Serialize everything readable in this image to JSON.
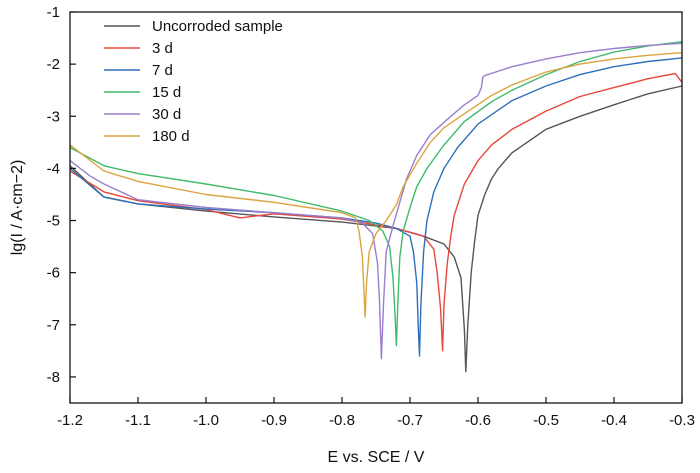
{
  "chart_data": {
    "type": "line",
    "xlabel": "E vs. SCE / V",
    "ylabel": "lg(I / A·cm−2)",
    "xlim": [
      -1.2,
      -0.3
    ],
    "ylim": [
      -8.5,
      -1
    ],
    "x_ticks": [
      -1.2,
      -1.1,
      -1.0,
      -0.9,
      -0.8,
      -0.7,
      -0.6,
      -0.5,
      -0.4,
      -0.3
    ],
    "x_tick_labels": [
      "-1.2",
      "-1.1",
      "-1.0",
      "-0.9",
      "-0.8",
      "-0.7",
      "-0.6",
      "-0.5",
      "-0.4",
      "-0.3"
    ],
    "y_ticks": [
      -8,
      -7,
      -6,
      -5,
      -4,
      -3,
      -2,
      -1
    ],
    "y_tick_labels": [
      "-8",
      "-7",
      "-6",
      "-5",
      "-4",
      "-3",
      "-2",
      "-1"
    ],
    "grid": false,
    "legend_position": "top-left",
    "series": [
      {
        "name": "Uncorroded sample",
        "color": "#555555",
        "points": [
          [
            -1.2,
            -3.95
          ],
          [
            -1.15,
            -4.55
          ],
          [
            -1.1,
            -4.68
          ],
          [
            -1.0,
            -4.82
          ],
          [
            -0.9,
            -4.93
          ],
          [
            -0.8,
            -5.03
          ],
          [
            -0.72,
            -5.15
          ],
          [
            -0.68,
            -5.3
          ],
          [
            -0.65,
            -5.45
          ],
          [
            -0.635,
            -5.7
          ],
          [
            -0.625,
            -6.1
          ],
          [
            -0.62,
            -7.1
          ],
          [
            -0.618,
            -7.9
          ],
          [
            -0.615,
            -7.0
          ],
          [
            -0.61,
            -6.0
          ],
          [
            -0.605,
            -5.4
          ],
          [
            -0.6,
            -4.9
          ],
          [
            -0.59,
            -4.5
          ],
          [
            -0.58,
            -4.2
          ],
          [
            -0.57,
            -4.0
          ],
          [
            -0.55,
            -3.7
          ],
          [
            -0.5,
            -3.25
          ],
          [
            -0.45,
            -3.0
          ],
          [
            -0.4,
            -2.78
          ],
          [
            -0.35,
            -2.57
          ],
          [
            -0.3,
            -2.42
          ]
        ]
      },
      {
        "name": "3 d",
        "color": "#e8473c",
        "points": [
          [
            -1.2,
            -4.05
          ],
          [
            -1.15,
            -4.45
          ],
          [
            -1.1,
            -4.62
          ],
          [
            -1.0,
            -4.79
          ],
          [
            -0.95,
            -4.95
          ],
          [
            -0.9,
            -4.87
          ],
          [
            -0.8,
            -4.97
          ],
          [
            -0.72,
            -5.15
          ],
          [
            -0.68,
            -5.3
          ],
          [
            -0.665,
            -5.55
          ],
          [
            -0.66,
            -6.0
          ],
          [
            -0.655,
            -6.7
          ],
          [
            -0.652,
            -7.5
          ],
          [
            -0.65,
            -6.6
          ],
          [
            -0.645,
            -5.8
          ],
          [
            -0.64,
            -5.3
          ],
          [
            -0.635,
            -4.9
          ],
          [
            -0.62,
            -4.3
          ],
          [
            -0.6,
            -3.85
          ],
          [
            -0.58,
            -3.55
          ],
          [
            -0.55,
            -3.25
          ],
          [
            -0.5,
            -2.9
          ],
          [
            -0.45,
            -2.62
          ],
          [
            -0.4,
            -2.45
          ],
          [
            -0.35,
            -2.28
          ],
          [
            -0.31,
            -2.18
          ],
          [
            -0.3,
            -2.35
          ]
        ]
      },
      {
        "name": "7 d",
        "color": "#2e6fba",
        "points": [
          [
            -1.2,
            -4.0
          ],
          [
            -1.15,
            -4.55
          ],
          [
            -1.1,
            -4.68
          ],
          [
            -1.0,
            -4.78
          ],
          [
            -0.9,
            -4.85
          ],
          [
            -0.8,
            -4.95
          ],
          [
            -0.75,
            -5.05
          ],
          [
            -0.72,
            -5.15
          ],
          [
            -0.7,
            -5.3
          ],
          [
            -0.695,
            -5.6
          ],
          [
            -0.69,
            -6.2
          ],
          [
            -0.688,
            -7.0
          ],
          [
            -0.686,
            -7.6
          ],
          [
            -0.684,
            -6.6
          ],
          [
            -0.68,
            -5.6
          ],
          [
            -0.675,
            -5.0
          ],
          [
            -0.665,
            -4.45
          ],
          [
            -0.65,
            -4.0
          ],
          [
            -0.63,
            -3.6
          ],
          [
            -0.6,
            -3.15
          ],
          [
            -0.55,
            -2.7
          ],
          [
            -0.5,
            -2.42
          ],
          [
            -0.45,
            -2.2
          ],
          [
            -0.4,
            -2.05
          ],
          [
            -0.35,
            -1.95
          ],
          [
            -0.3,
            -1.88
          ]
        ]
      },
      {
        "name": "15 d",
        "color": "#3fba6a",
        "points": [
          [
            -1.2,
            -3.6
          ],
          [
            -1.15,
            -3.95
          ],
          [
            -1.1,
            -4.1
          ],
          [
            -1.0,
            -4.3
          ],
          [
            -0.9,
            -4.52
          ],
          [
            -0.8,
            -4.82
          ],
          [
            -0.76,
            -5.0
          ],
          [
            -0.74,
            -5.2
          ],
          [
            -0.73,
            -5.5
          ],
          [
            -0.725,
            -6.1
          ],
          [
            -0.722,
            -6.8
          ],
          [
            -0.72,
            -7.4
          ],
          [
            -0.718,
            -6.6
          ],
          [
            -0.715,
            -5.7
          ],
          [
            -0.71,
            -5.2
          ],
          [
            -0.7,
            -4.75
          ],
          [
            -0.69,
            -4.35
          ],
          [
            -0.675,
            -4.0
          ],
          [
            -0.65,
            -3.55
          ],
          [
            -0.62,
            -3.1
          ],
          [
            -0.58,
            -2.72
          ],
          [
            -0.55,
            -2.5
          ],
          [
            -0.5,
            -2.2
          ],
          [
            -0.45,
            -1.95
          ],
          [
            -0.4,
            -1.77
          ],
          [
            -0.35,
            -1.65
          ],
          [
            -0.3,
            -1.57
          ]
        ]
      },
      {
        "name": "30 d",
        "color": "#9a7fcc",
        "points": [
          [
            -1.2,
            -3.85
          ],
          [
            -1.17,
            -4.15
          ],
          [
            -1.15,
            -4.3
          ],
          [
            -1.1,
            -4.6
          ],
          [
            -1.0,
            -4.75
          ],
          [
            -0.9,
            -4.85
          ],
          [
            -0.8,
            -4.95
          ],
          [
            -0.77,
            -5.05
          ],
          [
            -0.755,
            -5.25
          ],
          [
            -0.748,
            -5.8
          ],
          [
            -0.745,
            -6.5
          ],
          [
            -0.742,
            -7.65
          ],
          [
            -0.739,
            -6.6
          ],
          [
            -0.735,
            -5.6
          ],
          [
            -0.725,
            -5.1
          ],
          [
            -0.715,
            -4.65
          ],
          [
            -0.705,
            -4.2
          ],
          [
            -0.69,
            -3.75
          ],
          [
            -0.67,
            -3.35
          ],
          [
            -0.64,
            -3.0
          ],
          [
            -0.62,
            -2.78
          ],
          [
            -0.6,
            -2.6
          ],
          [
            -0.595,
            -2.45
          ],
          [
            -0.593,
            -2.25
          ],
          [
            -0.59,
            -2.22
          ],
          [
            -0.55,
            -2.05
          ],
          [
            -0.5,
            -1.9
          ],
          [
            -0.45,
            -1.78
          ],
          [
            -0.4,
            -1.7
          ],
          [
            -0.35,
            -1.64
          ],
          [
            -0.3,
            -1.6
          ]
        ]
      },
      {
        "name": "180 d",
        "color": "#dba43f",
        "points": [
          [
            -1.2,
            -3.55
          ],
          [
            -1.15,
            -4.05
          ],
          [
            -1.1,
            -4.25
          ],
          [
            -1.0,
            -4.5
          ],
          [
            -0.9,
            -4.65
          ],
          [
            -0.85,
            -4.75
          ],
          [
            -0.8,
            -4.85
          ],
          [
            -0.78,
            -4.95
          ],
          [
            -0.775,
            -5.2
          ],
          [
            -0.77,
            -5.7
          ],
          [
            -0.768,
            -6.3
          ],
          [
            -0.766,
            -6.85
          ],
          [
            -0.764,
            -6.2
          ],
          [
            -0.76,
            -5.6
          ],
          [
            -0.75,
            -5.25
          ],
          [
            -0.735,
            -5.0
          ],
          [
            -0.72,
            -4.7
          ],
          [
            -0.71,
            -4.35
          ],
          [
            -0.69,
            -3.9
          ],
          [
            -0.67,
            -3.5
          ],
          [
            -0.65,
            -3.22
          ],
          [
            -0.62,
            -2.95
          ],
          [
            -0.58,
            -2.6
          ],
          [
            -0.55,
            -2.4
          ],
          [
            -0.5,
            -2.15
          ],
          [
            -0.45,
            -2.0
          ],
          [
            -0.4,
            -1.9
          ],
          [
            -0.35,
            -1.83
          ],
          [
            -0.3,
            -1.78
          ]
        ]
      }
    ]
  }
}
